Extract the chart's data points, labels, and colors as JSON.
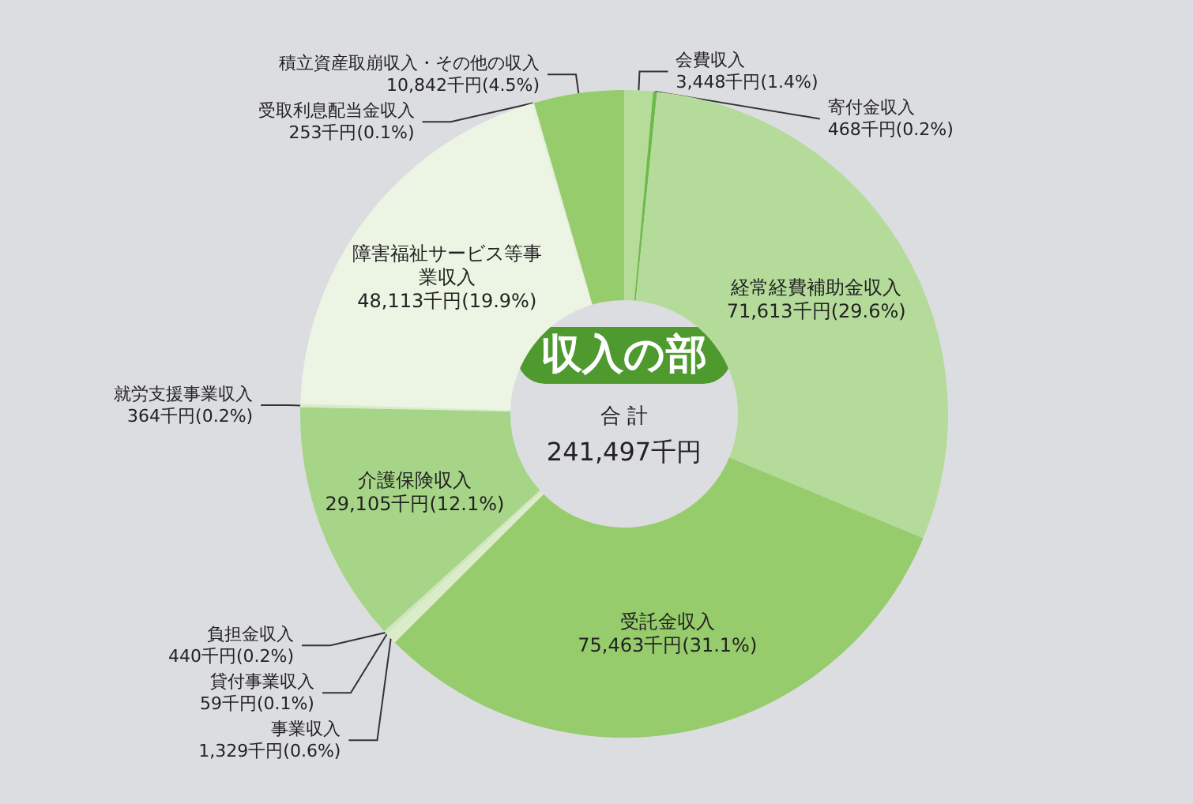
{
  "chart_data": {
    "type": "donut",
    "title": "収入の部",
    "annotations": [
      "合 計",
      "241,497千円"
    ],
    "categories": [
      "会費収入",
      "寄付金収入",
      "経常経費補助金収入",
      "受託金収入",
      "事業収入",
      "貸付事業収入",
      "負担金収入",
      "介護保険収入",
      "就労支援事業収入",
      "障害福祉サービス等事業収入",
      "受取利息配当金収入",
      "積立資産取崩収入・その他の収入"
    ],
    "values": [
      3448,
      468,
      71613,
      75463,
      1329,
      59,
      440,
      29105,
      364,
      48113,
      253,
      10842
    ],
    "value_labels": [
      "3,448千円(1.4%)",
      "468千円(0.2%)",
      "71,613千円(29.6%)",
      "75,463千円(31.1%)",
      "1,329千円(0.6%)",
      "59千円(0.1%)",
      "440千円(0.2%)",
      "29,105千円(12.1%)",
      "364千円(0.2%)",
      "48,113千円(19.9%)",
      "253千円(0.1%)",
      "10,842千円(4.5%)"
    ],
    "colors": [
      "#b6dc9a",
      "#6cbb48",
      "#b5db9b",
      "#96cc6b",
      "#daecc8",
      "#e3f0d6",
      "#cfe6ba",
      "#a7d588",
      "#d8ecc6",
      "#ecf4e4",
      "#e6f1dc",
      "#96cc6c"
    ],
    "legend": false
  }
}
